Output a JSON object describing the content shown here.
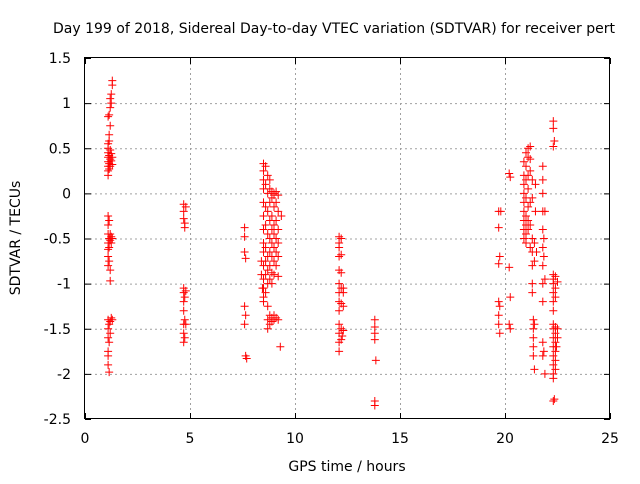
{
  "chart_data": {
    "type": "scatter",
    "title": "Day 199 of 2018, Sidereal Day-to-day VTEC variation (SDTVAR) for receiver pert",
    "xlabel": "GPS time / hours",
    "ylabel": "SDTVAR / TECUs",
    "xlim": [
      0,
      25
    ],
    "ylim": [
      -2.5,
      1.5
    ],
    "xticks": [
      "0",
      "5",
      "10",
      "15",
      "20",
      "25"
    ],
    "yticks": [
      "1.5",
      "1",
      "0.5",
      "0",
      "-0.5",
      "-1",
      "-1.5",
      "-2",
      "-2.5"
    ],
    "grid": true,
    "marker": "+",
    "color": "#ff0000",
    "series": [
      {
        "name": "SDTVAR",
        "points": [
          [
            1.1,
            0.55
          ],
          [
            1.1,
            0.5
          ],
          [
            1.1,
            0.45
          ],
          [
            1.1,
            0.4
          ],
          [
            1.1,
            0.35
          ],
          [
            1.1,
            0.3
          ],
          [
            1.1,
            0.25
          ],
          [
            1.1,
            0.2
          ],
          [
            1.15,
            0.58
          ],
          [
            1.15,
            0.42
          ],
          [
            1.15,
            0.33
          ],
          [
            1.15,
            0.27
          ],
          [
            1.2,
            0.48
          ],
          [
            1.2,
            0.38
          ],
          [
            1.2,
            0.3
          ],
          [
            1.25,
            0.44
          ],
          [
            1.25,
            0.36
          ],
          [
            1.3,
            0.4
          ],
          [
            1.3,
            0.32
          ],
          [
            1.15,
            0.65
          ],
          [
            1.2,
            0.75
          ],
          [
            1.1,
            0.85
          ],
          [
            1.15,
            0.87
          ],
          [
            1.2,
            0.95
          ],
          [
            1.25,
            1.0
          ],
          [
            1.2,
            1.05
          ],
          [
            1.25,
            1.1
          ],
          [
            1.3,
            1.2
          ],
          [
            1.3,
            1.25
          ],
          [
            1.1,
            -0.25
          ],
          [
            1.1,
            -0.35
          ],
          [
            1.1,
            -0.45
          ],
          [
            1.1,
            -0.55
          ],
          [
            1.1,
            -0.62
          ],
          [
            1.1,
            -0.7
          ],
          [
            1.1,
            -0.8
          ],
          [
            1.15,
            -0.3
          ],
          [
            1.15,
            -0.5
          ],
          [
            1.15,
            -0.6
          ],
          [
            1.15,
            -0.75
          ],
          [
            1.2,
            -0.45
          ],
          [
            1.2,
            -0.52
          ],
          [
            1.2,
            -0.85
          ],
          [
            1.25,
            -0.48
          ],
          [
            1.25,
            -0.55
          ],
          [
            1.3,
            -0.5
          ],
          [
            1.2,
            -0.97
          ],
          [
            1.1,
            -1.4
          ],
          [
            1.1,
            -1.5
          ],
          [
            1.1,
            -1.6
          ],
          [
            1.1,
            -1.75
          ],
          [
            1.1,
            -1.8
          ],
          [
            1.1,
            -1.9
          ],
          [
            1.15,
            -1.45
          ],
          [
            1.15,
            -1.65
          ],
          [
            1.15,
            -1.98
          ],
          [
            1.2,
            -1.42
          ],
          [
            1.2,
            -1.55
          ],
          [
            1.25,
            -1.38
          ],
          [
            1.3,
            -1.4
          ],
          [
            4.7,
            -0.12
          ],
          [
            4.7,
            -0.2
          ],
          [
            4.7,
            -0.28
          ],
          [
            4.75,
            -0.33
          ],
          [
            4.8,
            -0.15
          ],
          [
            4.75,
            -0.38
          ],
          [
            4.7,
            -1.05
          ],
          [
            4.7,
            -1.1
          ],
          [
            4.7,
            -1.2
          ],
          [
            4.75,
            -1.15
          ],
          [
            4.8,
            -1.08
          ],
          [
            4.7,
            -1.3
          ],
          [
            4.75,
            -1.4
          ],
          [
            4.7,
            -1.45
          ],
          [
            4.8,
            -1.45
          ],
          [
            4.7,
            -1.55
          ],
          [
            4.75,
            -1.6
          ],
          [
            4.7,
            -1.65
          ],
          [
            7.6,
            -0.38
          ],
          [
            7.6,
            -0.48
          ],
          [
            7.6,
            -0.65
          ],
          [
            7.65,
            -0.72
          ],
          [
            7.6,
            -1.25
          ],
          [
            7.65,
            -1.35
          ],
          [
            7.6,
            -1.45
          ],
          [
            7.65,
            -1.8
          ],
          [
            7.7,
            -1.83
          ],
          [
            8.5,
            0.33
          ],
          [
            8.5,
            0.25
          ],
          [
            8.5,
            0.15
          ],
          [
            8.5,
            0.05
          ],
          [
            8.5,
            -0.1
          ],
          [
            8.5,
            -0.25
          ],
          [
            8.5,
            -0.4
          ],
          [
            8.5,
            -0.55
          ],
          [
            8.5,
            -0.65
          ],
          [
            8.5,
            -0.8
          ],
          [
            8.5,
            -0.95
          ],
          [
            8.5,
            -1.05
          ],
          [
            8.5,
            -1.15
          ],
          [
            8.5,
            -1.2
          ],
          [
            8.6,
            0.3
          ],
          [
            8.6,
            0.1
          ],
          [
            8.6,
            -0.15
          ],
          [
            8.6,
            -0.35
          ],
          [
            8.6,
            -0.6
          ],
          [
            8.6,
            -0.75
          ],
          [
            8.6,
            -0.9
          ],
          [
            8.6,
            -1.1
          ],
          [
            8.7,
            0.2
          ],
          [
            8.7,
            0.0
          ],
          [
            8.7,
            -0.2
          ],
          [
            8.7,
            -0.45
          ],
          [
            8.7,
            -0.7
          ],
          [
            8.7,
            -0.85
          ],
          [
            8.7,
            -1.0
          ],
          [
            8.7,
            -1.25
          ],
          [
            8.7,
            -1.4
          ],
          [
            8.7,
            -1.5
          ],
          [
            8.8,
            0.05
          ],
          [
            8.8,
            -0.1
          ],
          [
            8.8,
            -0.3
          ],
          [
            8.8,
            -0.5
          ],
          [
            8.8,
            -0.65
          ],
          [
            8.8,
            -0.8
          ],
          [
            8.8,
            -0.95
          ],
          [
            8.8,
            -1.35
          ],
          [
            8.8,
            -1.45
          ],
          [
            8.9,
            0.02
          ],
          [
            8.9,
            -0.05
          ],
          [
            8.9,
            -0.25
          ],
          [
            8.9,
            -0.4
          ],
          [
            8.9,
            -0.55
          ],
          [
            8.9,
            -0.7
          ],
          [
            8.9,
            -0.88
          ],
          [
            8.9,
            -1.0
          ],
          [
            8.9,
            -1.38
          ],
          [
            8.9,
            -1.42
          ],
          [
            9.0,
            0.0
          ],
          [
            9.0,
            -0.15
          ],
          [
            9.0,
            -0.35
          ],
          [
            9.0,
            -0.45
          ],
          [
            9.0,
            -0.6
          ],
          [
            9.0,
            -0.75
          ],
          [
            9.0,
            -0.9
          ],
          [
            9.0,
            -1.35
          ],
          [
            9.0,
            -1.4
          ],
          [
            9.1,
            0.02
          ],
          [
            9.1,
            -0.1
          ],
          [
            9.1,
            -0.3
          ],
          [
            9.1,
            -0.5
          ],
          [
            9.1,
            -0.65
          ],
          [
            9.1,
            -0.8
          ],
          [
            9.1,
            -1.38
          ],
          [
            9.2,
            -0.02
          ],
          [
            9.2,
            -0.2
          ],
          [
            9.2,
            -0.4
          ],
          [
            9.2,
            -0.55
          ],
          [
            9.2,
            -0.7
          ],
          [
            9.2,
            -0.92
          ],
          [
            9.2,
            -1.4
          ],
          [
            9.35,
            -0.25
          ],
          [
            9.3,
            -1.7
          ],
          [
            8.4,
            -0.75
          ],
          [
            8.4,
            -0.9
          ],
          [
            8.45,
            -1.05
          ],
          [
            8.8,
            0.15
          ],
          [
            9.0,
            -0.02
          ],
          [
            12.1,
            -0.48
          ],
          [
            12.1,
            -0.55
          ],
          [
            12.1,
            -0.6
          ],
          [
            12.1,
            -0.7
          ],
          [
            12.1,
            -0.85
          ],
          [
            12.1,
            -1.0
          ],
          [
            12.1,
            -1.1
          ],
          [
            12.1,
            -1.2
          ],
          [
            12.1,
            -1.3
          ],
          [
            12.1,
            -1.45
          ],
          [
            12.1,
            -1.55
          ],
          [
            12.1,
            -1.65
          ],
          [
            12.1,
            -1.75
          ],
          [
            12.2,
            -0.5
          ],
          [
            12.2,
            -0.68
          ],
          [
            12.2,
            -0.88
          ],
          [
            12.2,
            -1.05
          ],
          [
            12.2,
            -1.22
          ],
          [
            12.2,
            -1.5
          ],
          [
            12.2,
            -1.62
          ],
          [
            12.3,
            -1.05
          ],
          [
            12.3,
            -1.1
          ],
          [
            12.3,
            -1.25
          ],
          [
            12.3,
            -1.52
          ],
          [
            12.25,
            -1.58
          ],
          [
            13.8,
            -1.4
          ],
          [
            13.8,
            -1.48
          ],
          [
            13.8,
            -1.55
          ],
          [
            13.8,
            -1.62
          ],
          [
            13.85,
            -1.85
          ],
          [
            13.8,
            -2.3
          ],
          [
            13.8,
            -2.35
          ],
          [
            19.7,
            -0.2
          ],
          [
            19.7,
            -0.38
          ],
          [
            19.75,
            -0.7
          ],
          [
            19.7,
            -0.78
          ],
          [
            19.8,
            -0.2
          ],
          [
            19.7,
            -1.2
          ],
          [
            19.75,
            -1.25
          ],
          [
            19.7,
            -1.35
          ],
          [
            19.7,
            -1.45
          ],
          [
            19.75,
            -1.55
          ],
          [
            20.2,
            0.22
          ],
          [
            20.25,
            0.18
          ],
          [
            20.2,
            -0.82
          ],
          [
            20.25,
            -1.15
          ],
          [
            20.2,
            -1.45
          ],
          [
            20.25,
            -1.5
          ],
          [
            20.9,
            0.35
          ],
          [
            20.9,
            0.2
          ],
          [
            20.9,
            0.1
          ],
          [
            20.9,
            0.0
          ],
          [
            20.9,
            -0.1
          ],
          [
            20.9,
            -0.2
          ],
          [
            20.9,
            -0.3
          ],
          [
            20.9,
            -0.4
          ],
          [
            20.9,
            -0.5
          ],
          [
            21.0,
            0.45
          ],
          [
            21.0,
            0.3
          ],
          [
            21.0,
            0.15
          ],
          [
            21.0,
            -0.05
          ],
          [
            21.0,
            -0.25
          ],
          [
            21.0,
            -0.35
          ],
          [
            21.0,
            -0.45
          ],
          [
            21.0,
            -0.55
          ],
          [
            21.1,
            0.5
          ],
          [
            21.1,
            0.4
          ],
          [
            21.1,
            0.2
          ],
          [
            21.1,
            0.05
          ],
          [
            21.1,
            -0.15
          ],
          [
            21.1,
            -0.3
          ],
          [
            21.1,
            -0.4
          ],
          [
            21.2,
            0.52
          ],
          [
            21.2,
            0.38
          ],
          [
            21.2,
            0.25
          ],
          [
            21.2,
            -0.1
          ],
          [
            21.2,
            -0.35
          ],
          [
            21.2,
            -0.6
          ],
          [
            21.3,
            0.15
          ],
          [
            21.3,
            -0.05
          ],
          [
            21.3,
            -0.5
          ],
          [
            21.3,
            -0.65
          ],
          [
            21.3,
            -0.8
          ],
          [
            21.3,
            -1.0
          ],
          [
            21.3,
            -1.1
          ],
          [
            21.35,
            -1.4
          ],
          [
            21.35,
            -1.5
          ],
          [
            21.35,
            -1.6
          ],
          [
            21.35,
            -1.7
          ],
          [
            21.35,
            -1.8
          ],
          [
            21.4,
            -1.45
          ],
          [
            21.4,
            -1.95
          ],
          [
            21.4,
            -0.55
          ],
          [
            21.4,
            -0.75
          ],
          [
            21.45,
            0.1
          ],
          [
            21.45,
            -0.2
          ],
          [
            21.5,
            -0.65
          ],
          [
            21.8,
            0.3
          ],
          [
            21.8,
            0.15
          ],
          [
            21.8,
            0.0
          ],
          [
            21.8,
            -0.2
          ],
          [
            21.8,
            -0.4
          ],
          [
            21.8,
            -0.6
          ],
          [
            21.8,
            -0.8
          ],
          [
            21.8,
            -1.0
          ],
          [
            21.8,
            -1.2
          ],
          [
            21.85,
            -0.5
          ],
          [
            21.85,
            -0.7
          ],
          [
            21.9,
            -0.95
          ],
          [
            21.9,
            -0.2
          ],
          [
            21.8,
            -1.65
          ],
          [
            21.85,
            -1.75
          ],
          [
            21.8,
            -1.8
          ],
          [
            21.9,
            -2.0
          ],
          [
            22.3,
            0.8
          ],
          [
            22.3,
            0.72
          ],
          [
            22.35,
            0.58
          ],
          [
            22.3,
            0.52
          ],
          [
            22.3,
            -0.9
          ],
          [
            22.3,
            -0.95
          ],
          [
            22.3,
            -1.0
          ],
          [
            22.3,
            -1.1
          ],
          [
            22.3,
            -1.2
          ],
          [
            22.3,
            -1.3
          ],
          [
            22.3,
            -1.45
          ],
          [
            22.3,
            -1.5
          ],
          [
            22.3,
            -1.6
          ],
          [
            22.3,
            -1.7
          ],
          [
            22.3,
            -1.8
          ],
          [
            22.3,
            -1.9
          ],
          [
            22.3,
            -2.0
          ],
          [
            22.3,
            -2.05
          ],
          [
            22.4,
            -0.92
          ],
          [
            22.4,
            -1.05
          ],
          [
            22.4,
            -1.15
          ],
          [
            22.4,
            -1.48
          ],
          [
            22.4,
            -1.55
          ],
          [
            22.4,
            -1.65
          ],
          [
            22.4,
            -1.75
          ],
          [
            22.4,
            -1.85
          ],
          [
            22.4,
            -1.95
          ],
          [
            22.5,
            -0.98
          ],
          [
            22.5,
            -1.5
          ],
          [
            22.5,
            -1.6
          ],
          [
            22.45,
            -1.7
          ],
          [
            22.35,
            -2.28
          ],
          [
            22.3,
            -2.3
          ]
        ]
      }
    ]
  }
}
